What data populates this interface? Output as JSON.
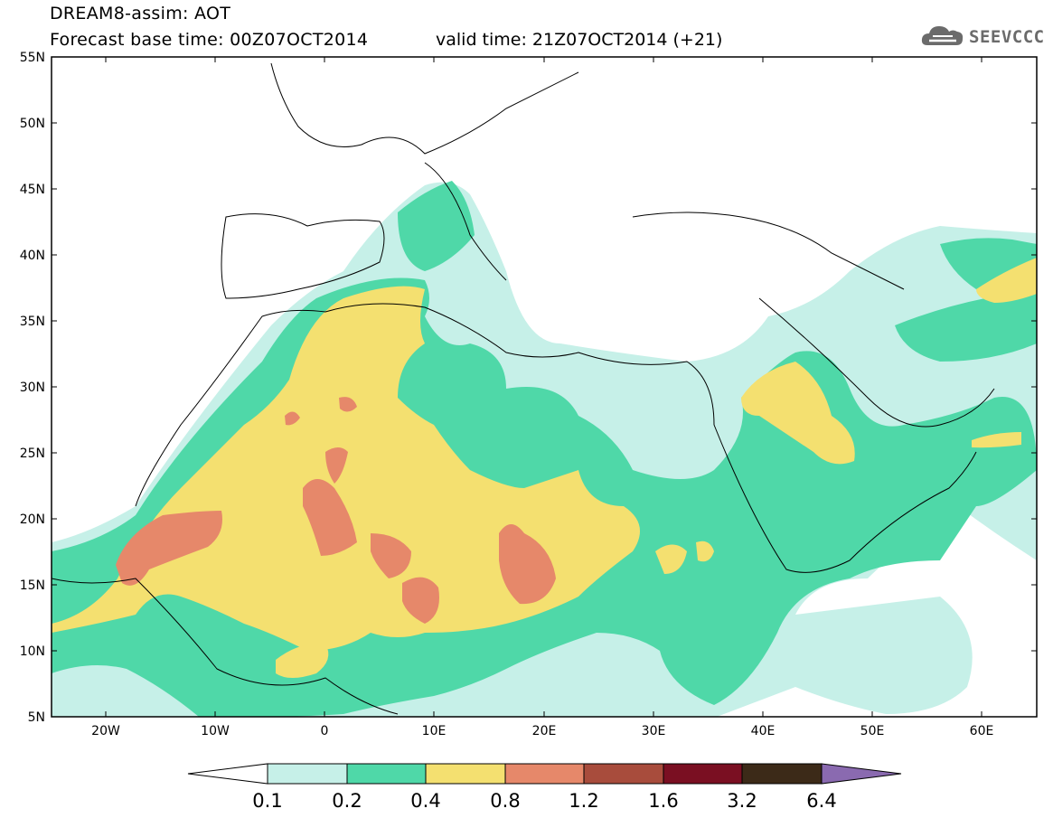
{
  "header": {
    "title": "DREAM8-assim: AOT",
    "base_time": "Forecast base time: 00Z07OCT2014",
    "valid_time": "valid time: 21Z07OCT2014 (+21)",
    "logo_text": "SEEVCCC",
    "logo_color": "#6b6b6b"
  },
  "map": {
    "lon_range": [
      -25,
      65
    ],
    "lat_range": [
      5,
      55
    ],
    "lat_labels": [
      "55N",
      "50N",
      "45N",
      "40N",
      "35N",
      "30N",
      "25N",
      "20N",
      "15N",
      "10N",
      "5N"
    ],
    "lon_labels": [
      "20W",
      "10W",
      "0",
      "10E",
      "20E",
      "30E",
      "40E",
      "50E",
      "60E"
    ]
  },
  "legend": {
    "thresholds": [
      "0.1",
      "0.2",
      "0.4",
      "0.8",
      "1.2",
      "1.6",
      "3.2",
      "6.4"
    ],
    "colors": [
      "#c6f0e8",
      "#4fd8a8",
      "#f4e070",
      "#e6886a",
      "#a84c3c",
      "#7a0f22",
      "#3c2a18",
      "#8a6ab0"
    ]
  }
}
